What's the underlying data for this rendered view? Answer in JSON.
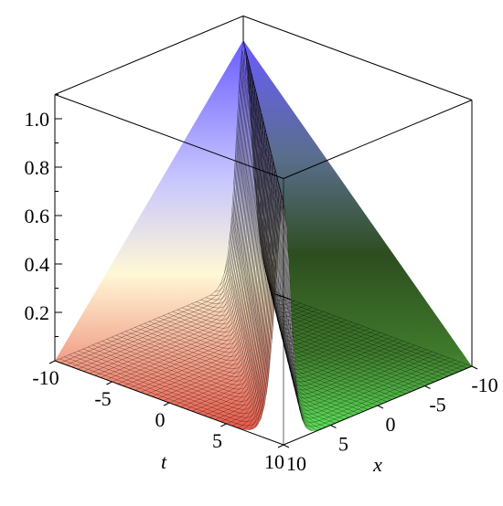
{
  "chart_data": {
    "type": "surface3d",
    "title": "",
    "function_shape": "sech-squared soliton ridge along x = t",
    "peak_value": 1.0,
    "ridge_direction": "x = t",
    "x": {
      "label": "x",
      "range": [
        -10,
        10
      ],
      "ticks": [
        "-10",
        "-5",
        "0",
        "5",
        "10"
      ]
    },
    "t": {
      "label": "t",
      "range": [
        -10,
        10
      ],
      "ticks": [
        "-10",
        "-5",
        "0",
        "5",
        "10"
      ]
    },
    "z": {
      "label": "",
      "range": [
        0,
        1.1
      ],
      "ticks": [
        "0.2",
        "0.4",
        "0.6",
        "0.8",
        "1.0"
      ]
    },
    "profile_samples": [
      {
        "distance": 0,
        "z": 1.0
      },
      {
        "distance": 1,
        "z": 0.42
      },
      {
        "distance": 2,
        "z": 0.07
      },
      {
        "distance": 3,
        "z": 0.01
      },
      {
        "distance": 5,
        "z": 0.0
      }
    ],
    "box": true,
    "colors": {
      "peak": "#6a5cff",
      "mid_light": "#fff8d6",
      "left_base": "#e85a4a",
      "right_base": "#5ee05a",
      "right_shadow": "#2e4d1f",
      "mesh": "#000000"
    }
  }
}
